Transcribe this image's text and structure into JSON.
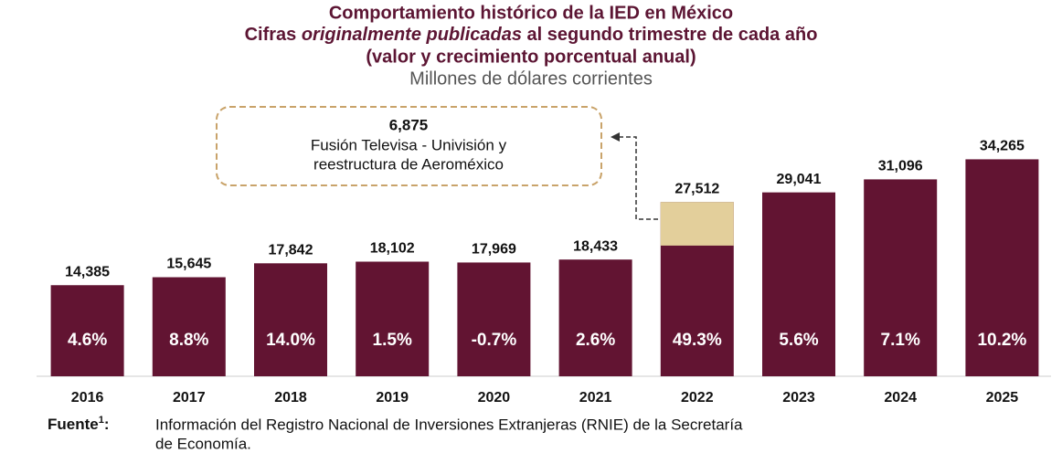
{
  "chart_data": {
    "type": "bar",
    "title": {
      "line1": "Comportamiento histórico de la IED en México",
      "line2": [
        "Cifras ",
        "originalmente publicadas",
        " al segundo trimestre de cada año"
      ],
      "line3": "(valor y crecimiento porcentual anual)"
    },
    "subtitle": "Millones de dólares corrientes",
    "categories": [
      "2016",
      "2017",
      "2018",
      "2019",
      "2020",
      "2021",
      "2022",
      "2023",
      "2024",
      "2025"
    ],
    "values": [
      14385,
      15645,
      17842,
      18102,
      17969,
      18433,
      27512,
      29041,
      31096,
      34265
    ],
    "value_labels": [
      "14,385",
      "15,645",
      "17,842",
      "18,102",
      "17,969",
      "18,433",
      "27,512",
      "29,041",
      "31,096",
      "34,265"
    ],
    "color": "#621432",
    "growth": {
      "values": [
        4.6,
        8.8,
        14,
        1.5,
        -0.7,
        2.6,
        49.3,
        5.6,
        7.1,
        10.2
      ],
      "value_labels": [
        "4.6%",
        "8.8%",
        "14.0%",
        "1.5%",
        "-0.7%",
        "2.6%",
        "49.3%",
        "5.6%",
        "7.1%",
        "10.2%"
      ]
    },
    "annotation": {
      "category": 6,
      "value": 6875,
      "label": "6,875",
      "text": [
        "Fusión Televisa - Univisión y",
        "reestructura de Aeroméxico"
      ],
      "color": "#e3cf9b"
    },
    "ylim": [
      0,
      45000
    ],
    "source": {
      "label": "Fuente",
      "sup": "1",
      "colon": ":",
      "text": [
        "Información del Registro Nacional de Inversiones Extranjeras (RNIE) de la Secretaría",
        "de Economía."
      ]
    }
  }
}
